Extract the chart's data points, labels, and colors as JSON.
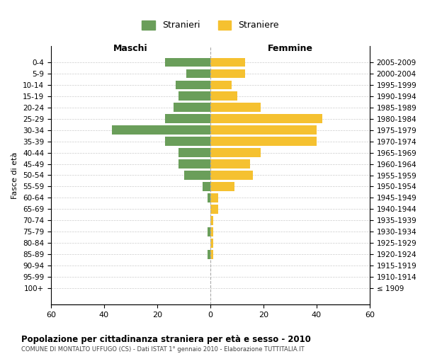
{
  "age_groups": [
    "0-4",
    "5-9",
    "10-14",
    "15-19",
    "20-24",
    "25-29",
    "30-34",
    "35-39",
    "40-44",
    "45-49",
    "50-54",
    "55-59",
    "60-64",
    "65-69",
    "70-74",
    "75-79",
    "80-84",
    "85-89",
    "90-94",
    "95-99",
    "100+"
  ],
  "birth_years": [
    "2005-2009",
    "2000-2004",
    "1995-1999",
    "1990-1994",
    "1985-1989",
    "1980-1984",
    "1975-1979",
    "1970-1974",
    "1965-1969",
    "1960-1964",
    "1955-1959",
    "1950-1954",
    "1945-1949",
    "1940-1944",
    "1935-1939",
    "1930-1934",
    "1925-1929",
    "1920-1924",
    "1915-1919",
    "1910-1914",
    "≤ 1909"
  ],
  "maschi": [
    17,
    9,
    13,
    12,
    14,
    17,
    37,
    17,
    12,
    12,
    10,
    3,
    1,
    0,
    0,
    1,
    0,
    1,
    0,
    0,
    0
  ],
  "femmine": [
    13,
    13,
    8,
    10,
    19,
    42,
    40,
    40,
    19,
    15,
    16,
    9,
    3,
    3,
    1,
    1,
    1,
    1,
    0,
    0,
    0
  ],
  "color_maschi": "#6a9e5a",
  "color_femmine": "#f5c130",
  "title": "Popolazione per cittadinanza straniera per età e sesso - 2010",
  "subtitle": "COMUNE DI MONTALTO UFFUGO (CS) - Dati ISTAT 1° gennaio 2010 - Elaborazione TUTTITALIA.IT",
  "ylabel_left": "Fasce di età",
  "xlabel_left": "Maschi",
  "xlabel_right": "Femmine",
  "legend_stranieri": "Stranieri",
  "legend_straniere": "Straniere",
  "xlim": 60,
  "background_color": "#ffffff",
  "grid_color": "#cccccc"
}
